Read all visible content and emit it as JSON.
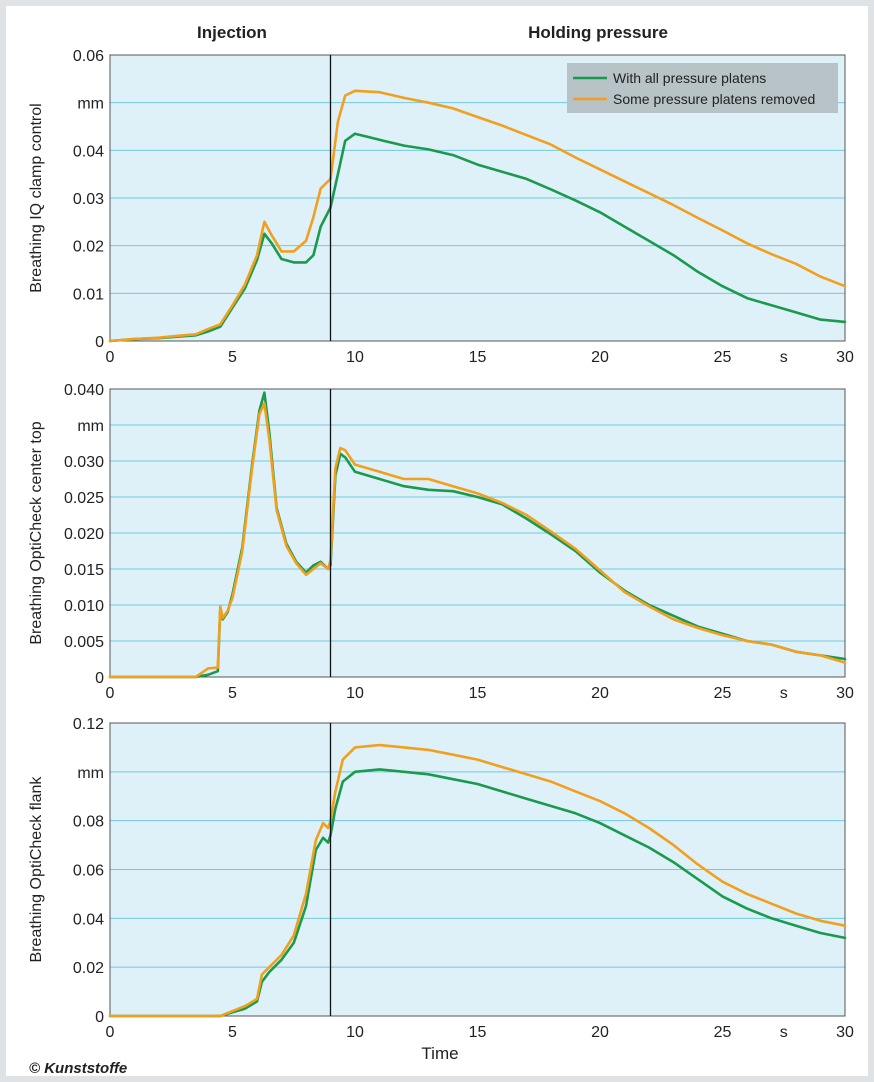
{
  "figure": {
    "phases": [
      "Injection",
      "Holding pressure"
    ],
    "x_title": "Time",
    "copyright": "© Kunststoffe",
    "legend": [
      {
        "label": "With all pressure platens",
        "color": "#1a9a4e"
      },
      {
        "label": "Some pressure platens removed",
        "color": "#f0a01e"
      }
    ],
    "colors": {
      "plot_bg": "#dff1f8",
      "grid": "#72c9e0",
      "series_green": "#1a9a4e",
      "series_orange": "#f0a01e",
      "switchover_line": "#111111",
      "legend_bg": "#b8c3c8"
    }
  },
  "chart_data": [
    {
      "type": "line",
      "ylabel": "Breathing IQ clamp control",
      "unit": "mm",
      "xlim": [
        0,
        30
      ],
      "ylim": [
        0,
        0.06
      ],
      "x_tick_labels": [
        "0",
        "5",
        "10",
        "15",
        "20",
        "25",
        "s",
        "30"
      ],
      "y_tick_labels": [
        "0.06",
        "mm",
        "0.04",
        "0.03",
        "0.02",
        "0.01",
        "0"
      ],
      "switchover_time": 9.0,
      "legend_position": "top-right",
      "series": [
        {
          "name": "With all pressure platens",
          "x": [
            0,
            1,
            2,
            3,
            3.5,
            4,
            4.5,
            5,
            5.5,
            6,
            6.3,
            6.6,
            7,
            7.5,
            8,
            8.3,
            8.6,
            9,
            9.3,
            9.6,
            10,
            11,
            12,
            13,
            14,
            15,
            16,
            17,
            18,
            19,
            20,
            21,
            22,
            23,
            24,
            25,
            26,
            27,
            28,
            29,
            30
          ],
          "y": [
            0.0,
            0.0004,
            0.0006,
            0.001,
            0.0012,
            0.002,
            0.003,
            0.007,
            0.011,
            0.017,
            0.0225,
            0.0205,
            0.0172,
            0.0165,
            0.0165,
            0.018,
            0.024,
            0.028,
            0.035,
            0.042,
            0.0435,
            0.0422,
            0.041,
            0.0402,
            0.039,
            0.037,
            0.0355,
            0.034,
            0.0318,
            0.0295,
            0.027,
            0.024,
            0.021,
            0.018,
            0.0145,
            0.0115,
            0.009,
            0.0075,
            0.006,
            0.0045,
            0.004
          ]
        },
        {
          "name": "Some pressure platens removed",
          "x": [
            0,
            1,
            2,
            3,
            3.5,
            4,
            4.5,
            5,
            5.5,
            6,
            6.3,
            6.6,
            7,
            7.5,
            8,
            8.3,
            8.6,
            9,
            9.3,
            9.6,
            10,
            11,
            12,
            13,
            14,
            15,
            16,
            17,
            18,
            19,
            20,
            21,
            22,
            23,
            24,
            25,
            26,
            27,
            28,
            29,
            30
          ],
          "y": [
            0.0,
            0.0004,
            0.0007,
            0.0012,
            0.0014,
            0.0025,
            0.0035,
            0.0075,
            0.0118,
            0.018,
            0.025,
            0.0222,
            0.0188,
            0.0188,
            0.021,
            0.026,
            0.032,
            0.034,
            0.046,
            0.0515,
            0.0525,
            0.0522,
            0.051,
            0.05,
            0.0488,
            0.047,
            0.0452,
            0.0432,
            0.0412,
            0.0385,
            0.036,
            0.0335,
            0.031,
            0.0285,
            0.0258,
            0.0232,
            0.0205,
            0.0182,
            0.0162,
            0.0135,
            0.0115
          ]
        }
      ]
    },
    {
      "type": "line",
      "ylabel": "Breathing OptiCheck center top",
      "unit": "mm",
      "xlim": [
        0,
        30
      ],
      "ylim": [
        0,
        0.04
      ],
      "x_tick_labels": [
        "0",
        "5",
        "10",
        "15",
        "20",
        "25",
        "s",
        "30"
      ],
      "y_tick_labels": [
        "0.040",
        "mm",
        "0.030",
        "0.025",
        "0.020",
        "0.015",
        "0.010",
        "0.005",
        "0"
      ],
      "switchover_time": 9.0,
      "series": [
        {
          "name": "With all pressure platens",
          "x": [
            0,
            3.5,
            4,
            4.4,
            4.5,
            4.6,
            4.8,
            5,
            5.4,
            5.8,
            6.1,
            6.3,
            6.5,
            6.8,
            7.2,
            7.6,
            8,
            8.3,
            8.6,
            8.9,
            9.0,
            9.2,
            9.4,
            9.6,
            10,
            11,
            12,
            13,
            14,
            15,
            16,
            17,
            18,
            19,
            20,
            21,
            22,
            23,
            24,
            25,
            26,
            27,
            28,
            29,
            30
          ],
          "y": [
            0.0,
            0.0,
            0.0003,
            0.0008,
            0.0095,
            0.008,
            0.009,
            0.0115,
            0.018,
            0.0295,
            0.037,
            0.0395,
            0.034,
            0.0235,
            0.0185,
            0.016,
            0.0145,
            0.0155,
            0.016,
            0.015,
            0.0155,
            0.028,
            0.031,
            0.0305,
            0.0285,
            0.0275,
            0.0265,
            0.026,
            0.0258,
            0.025,
            0.024,
            0.022,
            0.0198,
            0.0175,
            0.0145,
            0.012,
            0.01,
            0.0085,
            0.007,
            0.006,
            0.005,
            0.0045,
            0.0035,
            0.003,
            0.0025
          ]
        },
        {
          "name": "Some pressure platens removed",
          "x": [
            0,
            3.5,
            4,
            4.4,
            4.5,
            4.6,
            4.8,
            5,
            5.4,
            5.8,
            6.1,
            6.3,
            6.5,
            6.8,
            7.2,
            7.6,
            8,
            8.3,
            8.6,
            8.9,
            9.0,
            9.2,
            9.4,
            9.6,
            10,
            11,
            12,
            13,
            14,
            15,
            16,
            17,
            18,
            19,
            20,
            21,
            22,
            23,
            24,
            25,
            26,
            27,
            28,
            29,
            30
          ],
          "y": [
            0.0,
            0.0,
            0.0012,
            0.0013,
            0.0098,
            0.0082,
            0.0092,
            0.011,
            0.0175,
            0.029,
            0.0365,
            0.038,
            0.033,
            0.0232,
            0.0182,
            0.0158,
            0.0142,
            0.015,
            0.0158,
            0.015,
            0.0162,
            0.029,
            0.0318,
            0.0315,
            0.0295,
            0.0285,
            0.0275,
            0.0275,
            0.0265,
            0.0255,
            0.0242,
            0.0225,
            0.0202,
            0.0178,
            0.0148,
            0.0118,
            0.0098,
            0.008,
            0.0068,
            0.0058,
            0.005,
            0.0045,
            0.0035,
            0.003,
            0.002
          ]
        }
      ]
    },
    {
      "type": "line",
      "ylabel": "Breathing OptiCheck flank",
      "unit": "mm",
      "xlim": [
        0,
        30
      ],
      "ylim": [
        0,
        0.12
      ],
      "x_tick_labels": [
        "0",
        "5",
        "10",
        "15",
        "20",
        "25",
        "s",
        "30"
      ],
      "y_tick_labels": [
        "0.12",
        "mm",
        "0.08",
        "0.06",
        "0.04",
        "0.02",
        "0"
      ],
      "switchover_time": 9.0,
      "series": [
        {
          "name": "With all pressure platens",
          "x": [
            0,
            4.5,
            5,
            5.5,
            6,
            6.2,
            6.5,
            7,
            7.5,
            8,
            8.4,
            8.7,
            8.9,
            9.0,
            9.2,
            9.5,
            10,
            11,
            12,
            13,
            14,
            15,
            16,
            17,
            18,
            19,
            20,
            21,
            22,
            23,
            24,
            25,
            26,
            27,
            28,
            29,
            30
          ],
          "y": [
            0.0,
            0.0,
            0.0015,
            0.003,
            0.006,
            0.014,
            0.018,
            0.023,
            0.03,
            0.045,
            0.068,
            0.073,
            0.071,
            0.074,
            0.085,
            0.096,
            0.1,
            0.101,
            0.1,
            0.099,
            0.097,
            0.095,
            0.092,
            0.089,
            0.086,
            0.083,
            0.079,
            0.074,
            0.069,
            0.063,
            0.056,
            0.049,
            0.044,
            0.04,
            0.037,
            0.034,
            0.032
          ]
        },
        {
          "name": "Some pressure platens removed",
          "x": [
            0,
            4.5,
            5,
            5.5,
            6,
            6.2,
            6.5,
            7,
            7.5,
            8,
            8.4,
            8.7,
            8.9,
            9.0,
            9.2,
            9.5,
            10,
            11,
            12,
            13,
            14,
            15,
            16,
            17,
            18,
            19,
            20,
            21,
            22,
            23,
            24,
            25,
            26,
            27,
            28,
            29,
            30
          ],
          "y": [
            0.0,
            0.0,
            0.002,
            0.004,
            0.007,
            0.017,
            0.02,
            0.025,
            0.033,
            0.05,
            0.072,
            0.079,
            0.077,
            0.08,
            0.092,
            0.105,
            0.11,
            0.111,
            0.11,
            0.109,
            0.107,
            0.105,
            0.102,
            0.099,
            0.096,
            0.092,
            0.088,
            0.083,
            0.077,
            0.07,
            0.062,
            0.055,
            0.05,
            0.046,
            0.042,
            0.039,
            0.037
          ]
        }
      ]
    }
  ]
}
